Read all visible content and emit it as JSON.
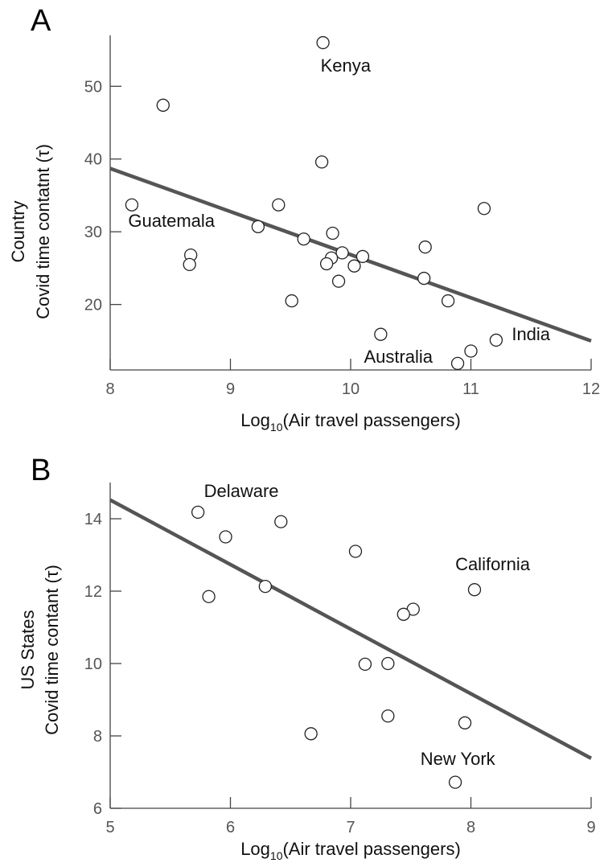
{
  "chart_data": [
    {
      "type": "scatter",
      "panel_label": "A",
      "xlabel": {
        "prefix": "Log",
        "sub": "10",
        "suffix": "(Air travel passengers)"
      },
      "ylabel": [
        "Country",
        "Covid time contatnt  (τ)"
      ],
      "xlim": [
        8,
        12
      ],
      "ylim": [
        11,
        57
      ],
      "xticks": [
        8,
        9,
        10,
        11,
        12
      ],
      "yticks": [
        20,
        30,
        40,
        50
      ],
      "points": [
        {
          "x": 9.77,
          "y": 56.0
        },
        {
          "x": 8.44,
          "y": 47.4
        },
        {
          "x": 9.76,
          "y": 39.6
        },
        {
          "x": 8.18,
          "y": 33.7
        },
        {
          "x": 9.4,
          "y": 33.7
        },
        {
          "x": 11.11,
          "y": 33.2
        },
        {
          "x": 9.23,
          "y": 30.7
        },
        {
          "x": 9.85,
          "y": 29.8
        },
        {
          "x": 9.61,
          "y": 29.0
        },
        {
          "x": 10.62,
          "y": 27.9
        },
        {
          "x": 9.93,
          "y": 27.1
        },
        {
          "x": 8.67,
          "y": 26.8
        },
        {
          "x": 10.1,
          "y": 26.6
        },
        {
          "x": 9.84,
          "y": 26.4
        },
        {
          "x": 9.8,
          "y": 25.6
        },
        {
          "x": 8.66,
          "y": 25.5
        },
        {
          "x": 10.03,
          "y": 25.3
        },
        {
          "x": 10.61,
          "y": 23.6
        },
        {
          "x": 9.9,
          "y": 23.2
        },
        {
          "x": 9.51,
          "y": 20.5
        },
        {
          "x": 10.81,
          "y": 20.5
        },
        {
          "x": 10.25,
          "y": 15.9
        },
        {
          "x": 11.21,
          "y": 15.1
        },
        {
          "x": 11.0,
          "y": 13.6
        },
        {
          "x": 10.89,
          "y": 11.9
        }
      ],
      "fit_line": {
        "x": [
          8,
          12
        ],
        "y": [
          38.7,
          15.0
        ]
      },
      "annotations": [
        {
          "text": "Kenya",
          "x": 9.75,
          "y": 52.0
        },
        {
          "text": "Guatemala",
          "x": 8.15,
          "y": 30.7
        },
        {
          "text": "India",
          "x": 11.34,
          "y": 15.1
        },
        {
          "text": "Australia",
          "x": 10.11,
          "y": 12.0
        }
      ]
    },
    {
      "type": "scatter",
      "panel_label": "B",
      "xlabel": {
        "prefix": "Log",
        "sub": "10",
        "suffix": "(Air travel passengers)"
      },
      "ylabel": [
        "US States",
        "Covid time contant  (τ)"
      ],
      "xlim": [
        5,
        9
      ],
      "ylim": [
        6,
        15
      ],
      "xticks": [
        5,
        6,
        7,
        8,
        9
      ],
      "yticks": [
        6,
        8,
        10,
        12,
        14
      ],
      "points": [
        {
          "x": 5.73,
          "y": 14.18
        },
        {
          "x": 6.42,
          "y": 13.92
        },
        {
          "x": 5.96,
          "y": 13.5
        },
        {
          "x": 7.04,
          "y": 13.1
        },
        {
          "x": 8.03,
          "y": 12.04
        },
        {
          "x": 6.29,
          "y": 12.13
        },
        {
          "x": 5.82,
          "y": 11.85
        },
        {
          "x": 7.52,
          "y": 11.5
        },
        {
          "x": 7.44,
          "y": 11.36
        },
        {
          "x": 7.12,
          "y": 9.98
        },
        {
          "x": 7.31,
          "y": 10.0
        },
        {
          "x": 7.31,
          "y": 8.55
        },
        {
          "x": 7.95,
          "y": 8.36
        },
        {
          "x": 6.67,
          "y": 8.06
        },
        {
          "x": 7.87,
          "y": 6.72
        }
      ],
      "fit_line": {
        "x": [
          5,
          9
        ],
        "y": [
          14.52,
          7.38
        ]
      },
      "annotations": [
        {
          "text": "Delaware",
          "x": 5.78,
          "y": 14.6
        },
        {
          "text": "California",
          "x": 7.87,
          "y": 12.58
        },
        {
          "text": "New York",
          "x": 7.58,
          "y": 7.2
        }
      ]
    }
  ]
}
